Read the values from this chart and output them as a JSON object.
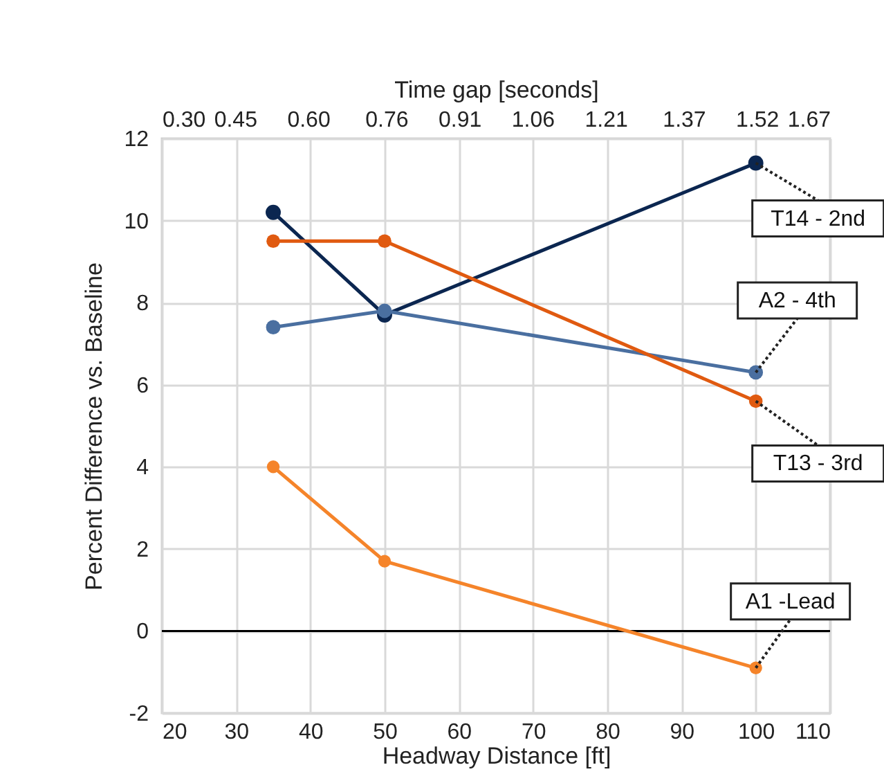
{
  "chart_data": {
    "type": "line",
    "xlabel": "Headway Distance [ft]",
    "ylabel": "Percent Difference vs. Baseline",
    "x2label": "Time gap [seconds]",
    "x": [
      35,
      50,
      100
    ],
    "series": [
      {
        "name": "T14 - 2nd",
        "color": "#0b2650",
        "values": [
          10.2,
          7.7,
          11.4
        ]
      },
      {
        "name": "A2 - 4th",
        "color": "#4a6fa0",
        "values": [
          7.4,
          7.8,
          6.3
        ]
      },
      {
        "name": "T13 - 3rd",
        "color": "#e05a10",
        "values": [
          9.5,
          9.5,
          5.6
        ]
      },
      {
        "name": "A1 -Lead",
        "color": "#f5842a",
        "values": [
          4.0,
          1.7,
          -0.9
        ]
      }
    ],
    "xlim": [
      20,
      110
    ],
    "xticks": [
      20,
      30,
      40,
      50,
      60,
      70,
      80,
      90,
      100,
      110
    ],
    "x2lim": [
      0.3,
      1.67
    ],
    "x2ticks": [
      {
        "value": 0.3,
        "label": "0.30"
      },
      0.45,
      {
        "value": 0.6,
        "label": "0.60"
      },
      0.76,
      0.91,
      1.06,
      1.21,
      1.37,
      1.52,
      1.67
    ],
    "ylim": [
      -2,
      12
    ],
    "yticks": [
      -2,
      0,
      2,
      4,
      6,
      8,
      10,
      12
    ],
    "ref_lines": [
      {
        "axis": "y",
        "value": 0,
        "color": "#000000"
      }
    ],
    "grid": true,
    "legend": false,
    "marker": "circle",
    "line_style": "solid"
  }
}
